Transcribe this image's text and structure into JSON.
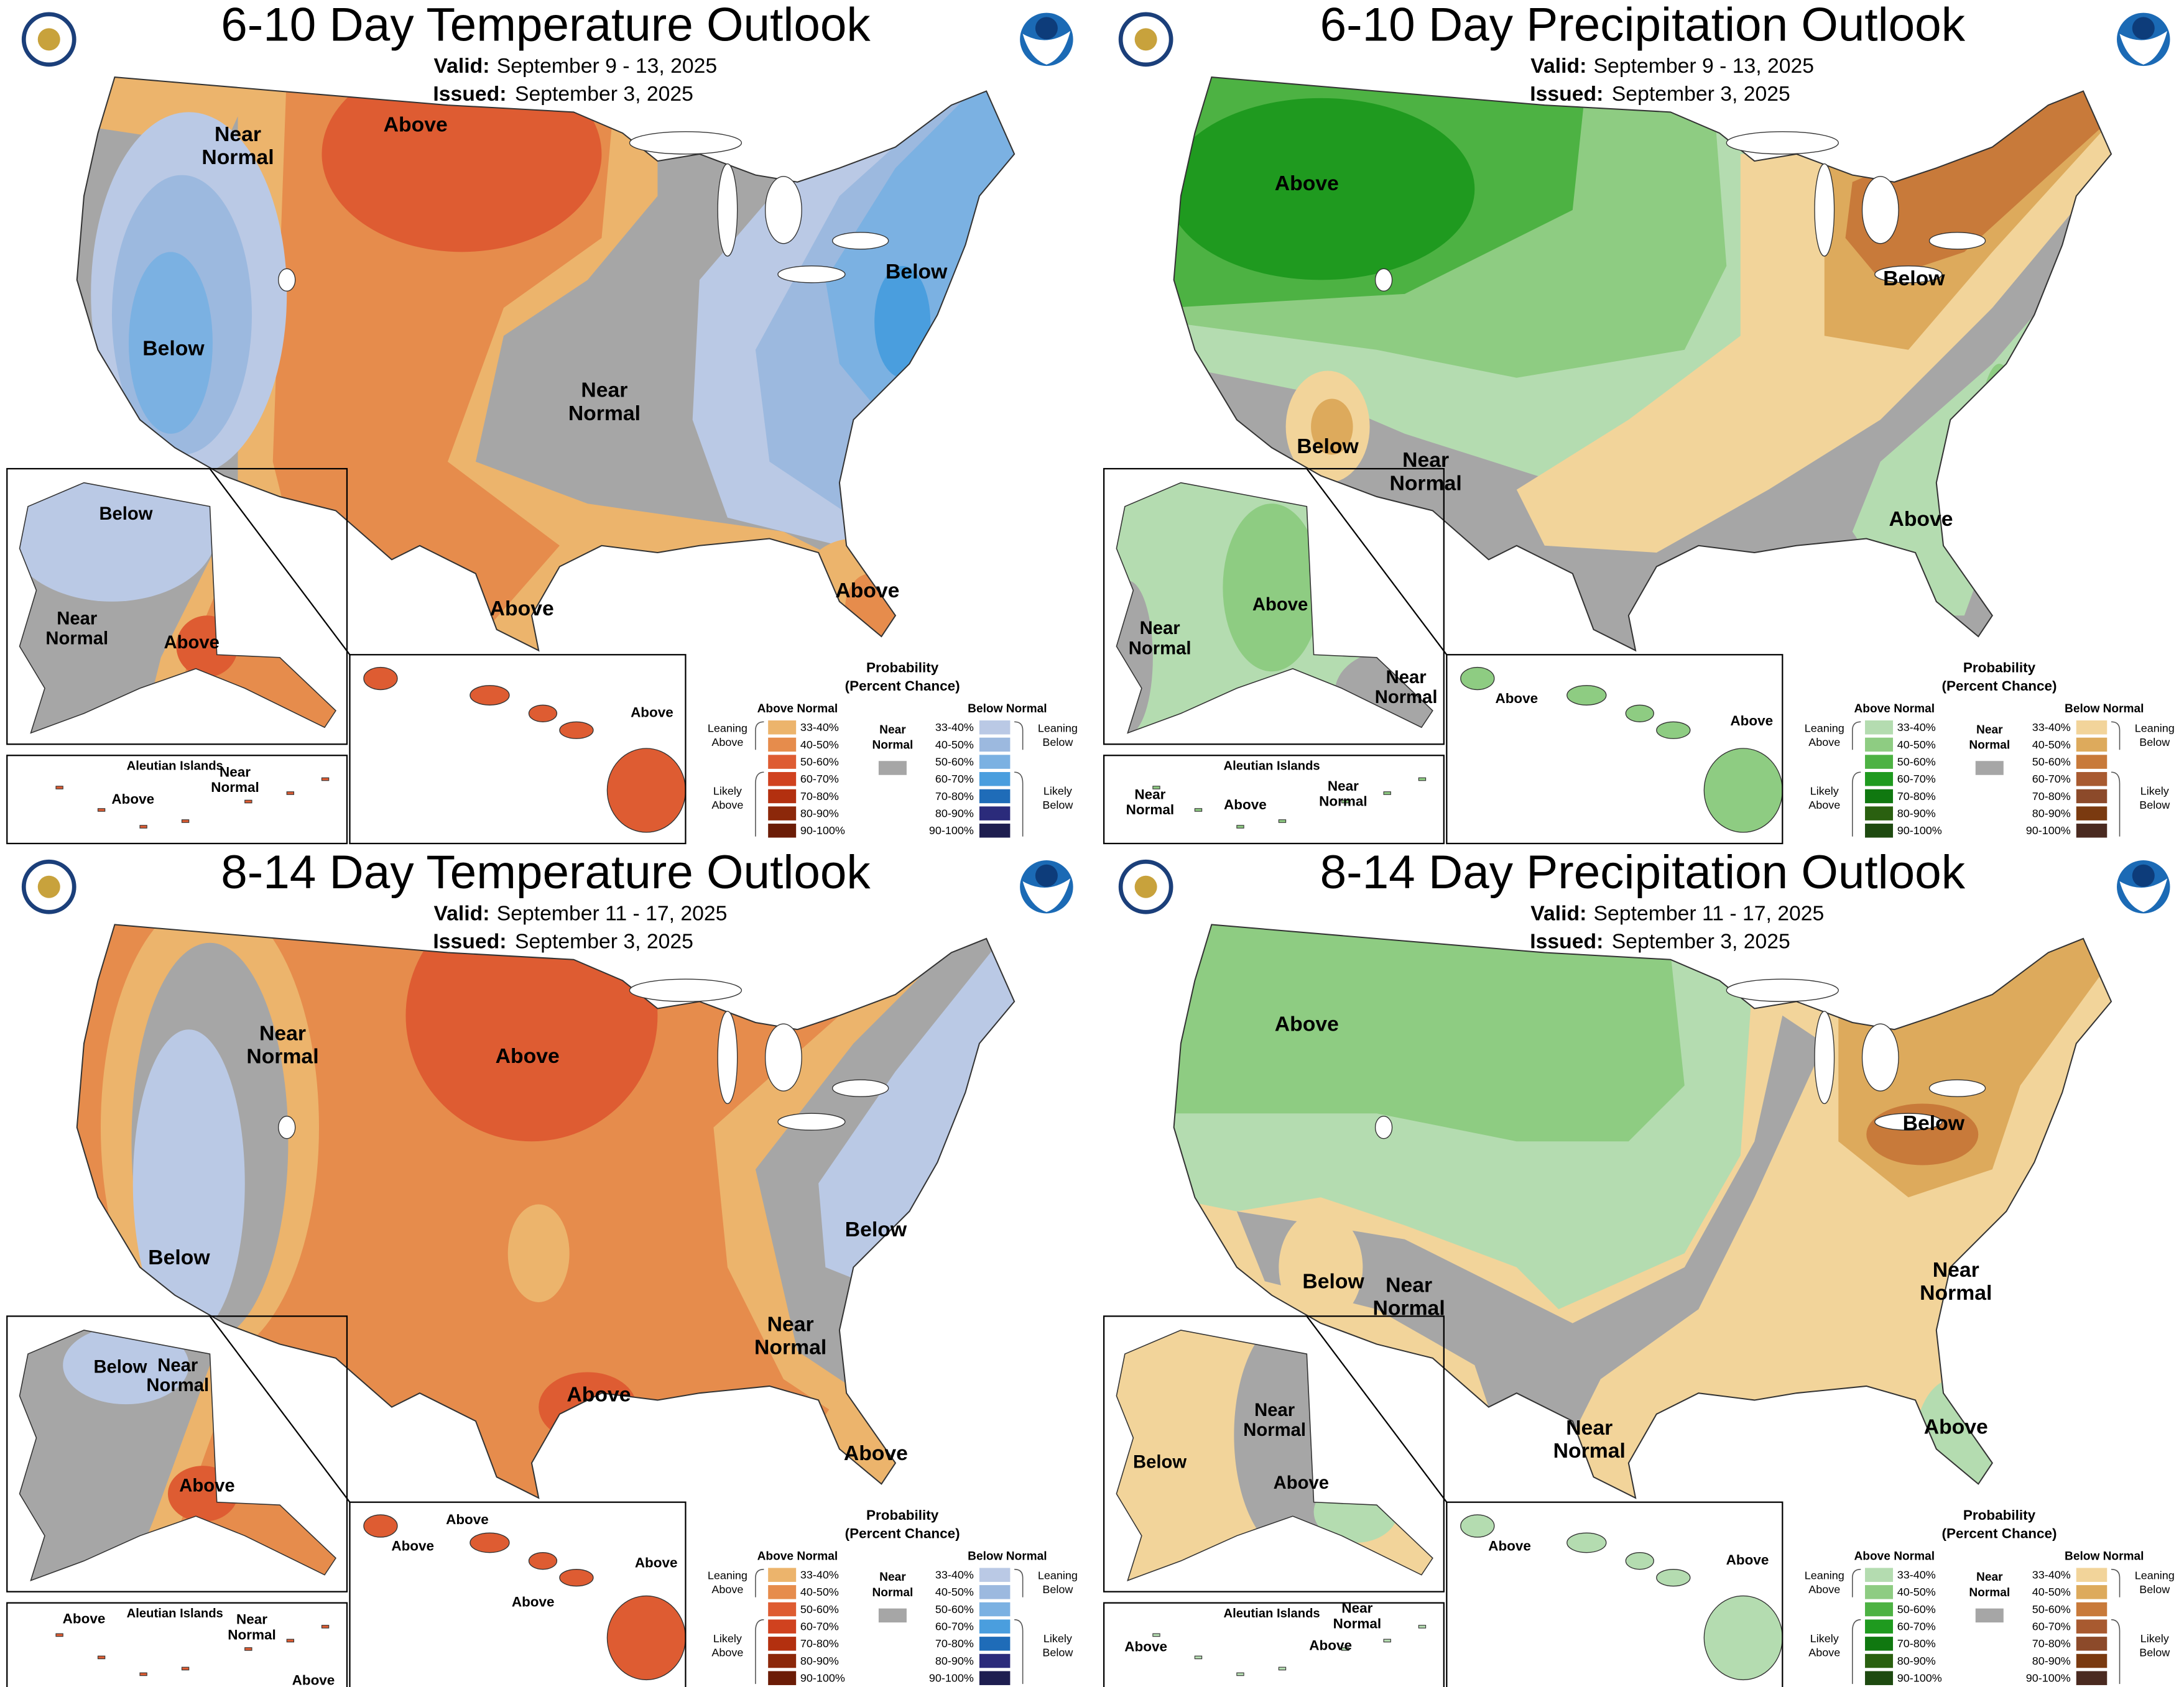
{
  "valid_label": "Valid:",
  "issued_label": "Issued:",
  "legend": {
    "title": [
      "Probability",
      "(Percent Chance)"
    ],
    "above_heading": "Above Normal",
    "below_heading": "Below Normal",
    "near": [
      "Near",
      "Normal"
    ],
    "leaning_above": [
      "Leaning",
      "Above"
    ],
    "likely_above": [
      "Likely",
      "Above"
    ],
    "leaning_below": [
      "Leaning",
      "Below"
    ],
    "likely_below": [
      "Likely",
      "Below"
    ],
    "ranges": [
      "33-40%",
      "40-50%",
      "50-60%",
      "60-70%",
      "70-80%",
      "80-90%",
      "90-100%"
    ]
  },
  "colors": {
    "temperature": {
      "above": [
        "#ecb46c",
        "#e68c4c",
        "#de5c32",
        "#d0421f",
        "#b3300f",
        "#8c280a",
        "#6b1c06"
      ],
      "below": [
        "#bac9e5",
        "#9cb9df",
        "#7bb1e2",
        "#4a9ede",
        "#1f6cb8",
        "#2b2b7b",
        "#1e1e50"
      ],
      "near": "#a6a6a6"
    },
    "precipitation": {
      "above": [
        "#b4dcb0",
        "#8ecc82",
        "#4db243",
        "#1f9a1f",
        "#107810",
        "#2a6010",
        "#1e4a10"
      ],
      "below": [
        "#f2d49a",
        "#ddaa5c",
        "#c87a3a",
        "#a85a30",
        "#8c4a2a",
        "#7a3a10",
        "#4a2a20"
      ],
      "near": "#a6a6a6"
    }
  },
  "panels": [
    {
      "kind": "temperature",
      "title": "6-10 Day Temperature Outlook",
      "valid": "September 9 - 13, 2025",
      "issued": "September 3, 2025",
      "labels": [
        [
          "Near",
          "Normal"
        ],
        [
          "Above"
        ],
        [
          "Below"
        ],
        [
          "Below"
        ],
        [
          "Near",
          "Normal"
        ],
        [
          "Above"
        ],
        [
          "Above"
        ],
        [
          "Below"
        ],
        [
          "Near",
          "Normal"
        ],
        [
          "Above"
        ],
        [
          "Aleutian Islands"
        ],
        [
          "Near",
          "Normal"
        ],
        [
          "Above"
        ],
        [
          "Above"
        ]
      ]
    },
    {
      "kind": "precipitation",
      "title": "6-10 Day Precipitation Outlook",
      "valid": "September 9 - 13, 2025",
      "issued": "September 3, 2025",
      "labels": [
        [
          "Above"
        ],
        [
          "Below"
        ],
        [
          "Below"
        ],
        [
          "Near",
          "Normal"
        ],
        [
          "Above"
        ],
        [
          "Near",
          "Normal"
        ],
        [
          "Above"
        ],
        [
          "Near",
          "Normal"
        ],
        [
          "Aleutian Islands"
        ],
        [
          "Near",
          "Normal"
        ],
        [
          "Above"
        ],
        [
          "Near",
          "Normal"
        ],
        [
          "Above"
        ],
        [
          "Above"
        ]
      ]
    },
    {
      "kind": "temperature",
      "title": "8-14 Day Temperature Outlook",
      "valid": "September 11 - 17, 2025",
      "issued": "September 3, 2025",
      "labels": [
        [
          "Near",
          "Normal"
        ],
        [
          "Above"
        ],
        [
          "Below"
        ],
        [
          "Below"
        ],
        [
          "Near",
          "Normal"
        ],
        [
          "Above"
        ],
        [
          "Above"
        ],
        [
          "Below"
        ],
        [
          "Near",
          "Normal"
        ],
        [
          "Above"
        ],
        [
          "Above"
        ],
        [
          "Aleutian Islands"
        ],
        [
          "Near",
          "Normal"
        ],
        [
          "Above"
        ],
        [
          "Above"
        ],
        [
          "Above"
        ],
        [
          "Above"
        ],
        [
          "Above"
        ]
      ]
    },
    {
      "kind": "precipitation",
      "title": "8-14 Day Precipitation Outlook",
      "valid": "September 11 - 17, 2025",
      "issued": "September 3, 2025",
      "labels": [
        [
          "Above"
        ],
        [
          "Below"
        ],
        [
          "Below"
        ],
        [
          "Near",
          "Normal"
        ],
        [
          "Near",
          "Normal"
        ],
        [
          "Near",
          "Normal"
        ],
        [
          "Above"
        ],
        [
          "Near",
          "Normal"
        ],
        [
          "Below"
        ],
        [
          "Above"
        ],
        [
          "Aleutian Islands"
        ],
        [
          "Above"
        ],
        [
          "Near",
          "Normal"
        ],
        [
          "Above"
        ],
        [
          "Above"
        ],
        [
          "Above"
        ]
      ]
    }
  ]
}
